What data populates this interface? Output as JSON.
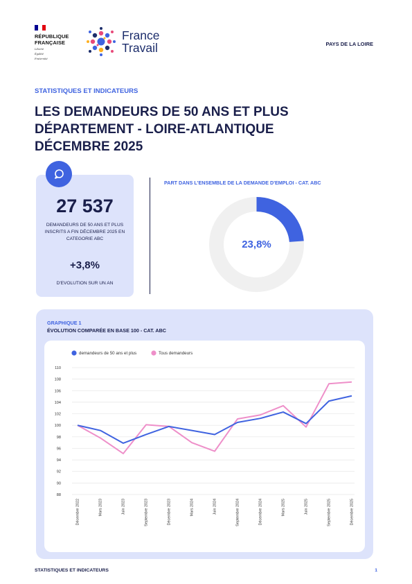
{
  "header": {
    "gov_name_line1": "RÉPUBLIQUE",
    "gov_name_line2": "FRANÇAISE",
    "gov_motto_1": "Liberté",
    "gov_motto_2": "Égalité",
    "gov_motto_3": "Fraternité",
    "brand_line1": "France",
    "brand_line2": "Travail",
    "region": "PAYS DE LA LOIRE"
  },
  "title_block": {
    "kicker": "STATISTIQUES ET INDICATEURS",
    "line1": "LES DEMANDEURS DE 50 ANS ET PLUS",
    "line2": "DÉPARTEMENT - LOIRE-ATLANTIQUE",
    "line3": "DÉCEMBRE 2025"
  },
  "kpi": {
    "value": "27 537",
    "caption": "DEMANDEURS DE 50 ANS ET PLUS INSCRITS A FIN DÉCEMBRE 2025 EN CATEGORIE ABC",
    "evolution": "+3,8%",
    "evolution_caption": "D'EVOLUTION SUR UN AN",
    "icon": "chat-bubble-icon"
  },
  "share": {
    "label": "PART DANS L'ENSEMBLE DE LA DEMANDE D'EMPLOI - CAT. ABC",
    "value_text": "23,8%",
    "fraction": 0.238
  },
  "chart_section": {
    "kicker": "GRAPHIQUE 1",
    "title": "ÉVOLUTION COMPARÉE EN BASE 100 - CAT. ABC"
  },
  "chart_data": {
    "type": "line",
    "x": [
      "Décembre 2022",
      "Mars 2023",
      "Juin 2023",
      "Septembre 2023",
      "Décembre 2023",
      "Mars 2024",
      "Juin 2024",
      "Septembre 2024",
      "Décembre 2024",
      "Mars 2025",
      "Juin 2025",
      "Septembre 2025",
      "Décembre 2025"
    ],
    "series": [
      {
        "name": "demandeurs de 50 ans et plus",
        "color": "#3f63e0",
        "values": [
          100,
          99.1,
          96.9,
          98.4,
          99.8,
          99.1,
          98.4,
          100.5,
          101.2,
          102.3,
          100.3,
          104.2,
          105.1
        ]
      },
      {
        "name": "Tous demandeurs",
        "color": "#ee8fc9",
        "values": [
          100,
          97.8,
          95.1,
          100.1,
          99.8,
          97.0,
          95.5,
          101.1,
          101.8,
          103.4,
          99.7,
          107.2,
          107.5
        ]
      }
    ],
    "ylim": [
      88,
      110
    ],
    "yticks": [
      88,
      90,
      92,
      94,
      96,
      98,
      100,
      102,
      104,
      106,
      108,
      110
    ],
    "grid": true,
    "legend": "top-left"
  },
  "footer": {
    "left": "STATISTIQUES ET INDICATEURS",
    "page": "1"
  },
  "colors": {
    "accent": "#3f63e0",
    "pink": "#ee8fc9",
    "navy": "#1a1f4b",
    "card_bg": "#dde3fb"
  }
}
